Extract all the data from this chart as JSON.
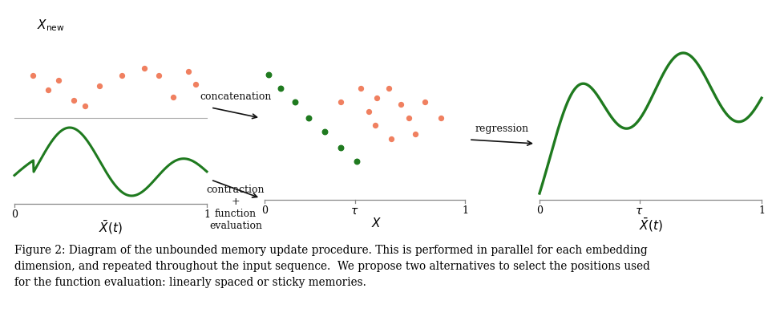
{
  "bg_color": "#ffffff",
  "green_color": "#1f7a1f",
  "orange_color": "#f08060",
  "arrow_color": "#111111",
  "concat_label": "concatenation",
  "contract_label": "contraction\n+\nfunction\nevaluation",
  "regression_label": "regression",
  "caption_line1": "Figure 2: Diagram of the unbounded memory update procedure. This is performed in parallel for each embedding",
  "caption_line2": "dimension, and repeated throughout the input sequence.  We propose two alternatives to select the positions used",
  "caption_line3": "for the function evaluation: linearly spaced or sticky memories.",
  "panel1_xbar_label": "$\\bar{X}(t)$",
  "panel1_Xnew_label": "$X_\\mathrm{new}$",
  "panel2_xlabel": "$X$",
  "panel3_xbar_label": "$\\bar{X}(t)$"
}
